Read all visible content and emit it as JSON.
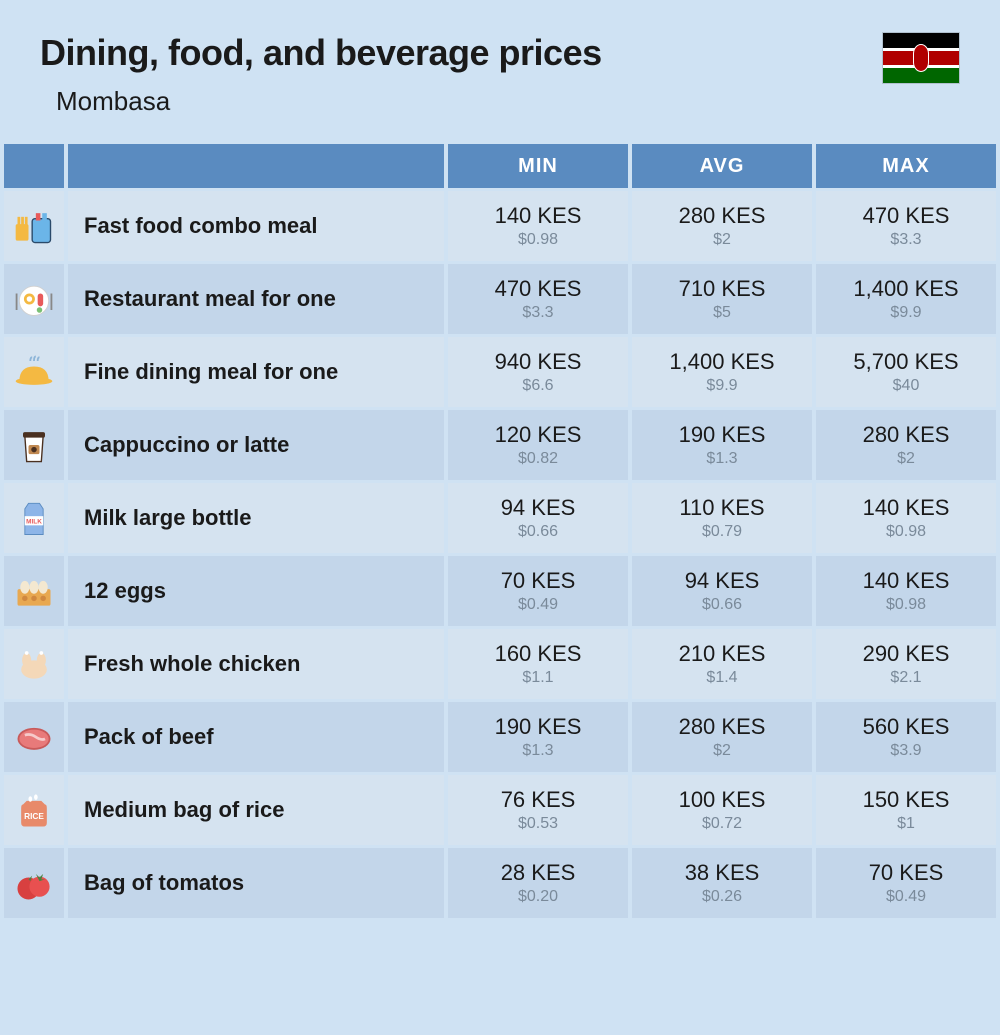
{
  "header": {
    "title": "Dining, food, and beverage prices",
    "subtitle": "Mombasa"
  },
  "columns": [
    "MIN",
    "AVG",
    "MAX"
  ],
  "rows": [
    {
      "icon": "fast-food",
      "name": "Fast food combo meal",
      "min_kes": "140 KES",
      "min_usd": "$0.98",
      "avg_kes": "280 KES",
      "avg_usd": "$2",
      "max_kes": "470 KES",
      "max_usd": "$3.3"
    },
    {
      "icon": "restaurant-meal",
      "name": "Restaurant meal for one",
      "min_kes": "470 KES",
      "min_usd": "$3.3",
      "avg_kes": "710 KES",
      "avg_usd": "$5",
      "max_kes": "1,400 KES",
      "max_usd": "$9.9"
    },
    {
      "icon": "fine-dining",
      "name": "Fine dining meal for one",
      "min_kes": "940 KES",
      "min_usd": "$6.6",
      "avg_kes": "1,400 KES",
      "avg_usd": "$9.9",
      "max_kes": "5,700 KES",
      "max_usd": "$40"
    },
    {
      "icon": "coffee",
      "name": "Cappuccino or latte",
      "min_kes": "120 KES",
      "min_usd": "$0.82",
      "avg_kes": "190 KES",
      "avg_usd": "$1.3",
      "max_kes": "280 KES",
      "max_usd": "$2"
    },
    {
      "icon": "milk",
      "name": "Milk large bottle",
      "min_kes": "94 KES",
      "min_usd": "$0.66",
      "avg_kes": "110 KES",
      "avg_usd": "$0.79",
      "max_kes": "140 KES",
      "max_usd": "$0.98"
    },
    {
      "icon": "eggs",
      "name": "12 eggs",
      "min_kes": "70 KES",
      "min_usd": "$0.49",
      "avg_kes": "94 KES",
      "avg_usd": "$0.66",
      "max_kes": "140 KES",
      "max_usd": "$0.98"
    },
    {
      "icon": "chicken",
      "name": "Fresh whole chicken",
      "min_kes": "160 KES",
      "min_usd": "$1.1",
      "avg_kes": "210 KES",
      "avg_usd": "$1.4",
      "max_kes": "290 KES",
      "max_usd": "$2.1"
    },
    {
      "icon": "beef",
      "name": "Pack of beef",
      "min_kes": "190 KES",
      "min_usd": "$1.3",
      "avg_kes": "280 KES",
      "avg_usd": "$2",
      "max_kes": "560 KES",
      "max_usd": "$3.9"
    },
    {
      "icon": "rice",
      "name": "Medium bag of rice",
      "min_kes": "76 KES",
      "min_usd": "$0.53",
      "avg_kes": "100 KES",
      "avg_usd": "$0.72",
      "max_kes": "150 KES",
      "max_usd": "$1"
    },
    {
      "icon": "tomato",
      "name": "Bag of tomatos",
      "min_kes": "28 KES",
      "min_usd": "$0.20",
      "avg_kes": "38 KES",
      "avg_usd": "$0.26",
      "max_kes": "70 KES",
      "max_usd": "$0.49"
    }
  ],
  "styling": {
    "background_color": "#cfe2f3",
    "header_text_color": "#1a1a1a",
    "table_header_bg": "#5a8bc0",
    "table_header_text": "#ffffff",
    "row_even_bg": "#d5e3f0",
    "row_odd_bg": "#c3d6ea",
    "kes_color": "#1a1a1a",
    "usd_color": "#7a8a9a",
    "title_fontsize": 36,
    "subtitle_fontsize": 26,
    "column_header_fontsize": 20,
    "item_name_fontsize": 22,
    "kes_fontsize": 22,
    "usd_fontsize": 16,
    "flag_colors": {
      "black": "#000000",
      "red": "#b00000",
      "green": "#006600",
      "white": "#ffffff"
    }
  }
}
